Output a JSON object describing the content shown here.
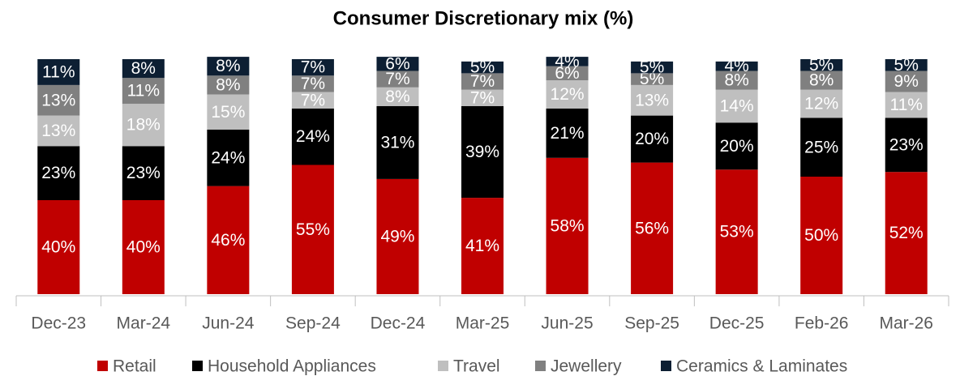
{
  "chart_data": {
    "type": "stacked_bar",
    "title": "Consumer Discretionary mix (%)",
    "categories": [
      "Dec-23",
      "Mar-24",
      "Jun-24",
      "Sep-24",
      "Dec-24",
      "Mar-25",
      "Jun-25",
      "Sep-25",
      "Dec-25",
      "Feb-26",
      "Mar-26"
    ],
    "ylim": [
      0,
      100
    ],
    "legend": "bottom",
    "series": [
      {
        "name": "Retail",
        "color": "#c00000",
        "values": [
          40,
          40,
          46,
          55,
          49,
          41,
          58,
          56,
          53,
          50,
          52
        ],
        "value_labels": [
          "40%",
          "40%",
          "46%",
          "55%",
          "49%",
          "41%",
          "58%",
          "56%",
          "53%",
          "50%",
          "52%"
        ]
      },
      {
        "name": "Household Appliances",
        "color": "#000000",
        "values": [
          23,
          23,
          24,
          24,
          31,
          39,
          21,
          20,
          20,
          25,
          23
        ],
        "value_labels": [
          "23%",
          "23%",
          "24%",
          "24%",
          "31%",
          "39%",
          "21%",
          "20%",
          "20%",
          "25%",
          "23%"
        ]
      },
      {
        "name": "Travel",
        "color": "#bfbfbf",
        "values": [
          13,
          18,
          15,
          7,
          8,
          7,
          12,
          13,
          14,
          12,
          11
        ],
        "value_labels": [
          "13%",
          "18%",
          "15%",
          "7%",
          "8%",
          "7%",
          "12%",
          "13%",
          "14%",
          "12%",
          "11%"
        ]
      },
      {
        "name": "Jewellery",
        "color": "#808080",
        "values": [
          13,
          11,
          8,
          7,
          7,
          7,
          6,
          5,
          8,
          8,
          9
        ],
        "value_labels": [
          "13%",
          "11%",
          "8%",
          "7%",
          "7%",
          "7%",
          "6%",
          "5%",
          "8%",
          "8%",
          "9%"
        ]
      },
      {
        "name": "Ceramics & Laminates",
        "color": "#0d1f33",
        "values": [
          11,
          8,
          8,
          7,
          6,
          5,
          4,
          5,
          4,
          5,
          5
        ],
        "value_labels": [
          "11%",
          "8%",
          "8%",
          "7%",
          "6%",
          "5%",
          "4%",
          "5%",
          "4%",
          "5%",
          "5%"
        ]
      }
    ]
  }
}
